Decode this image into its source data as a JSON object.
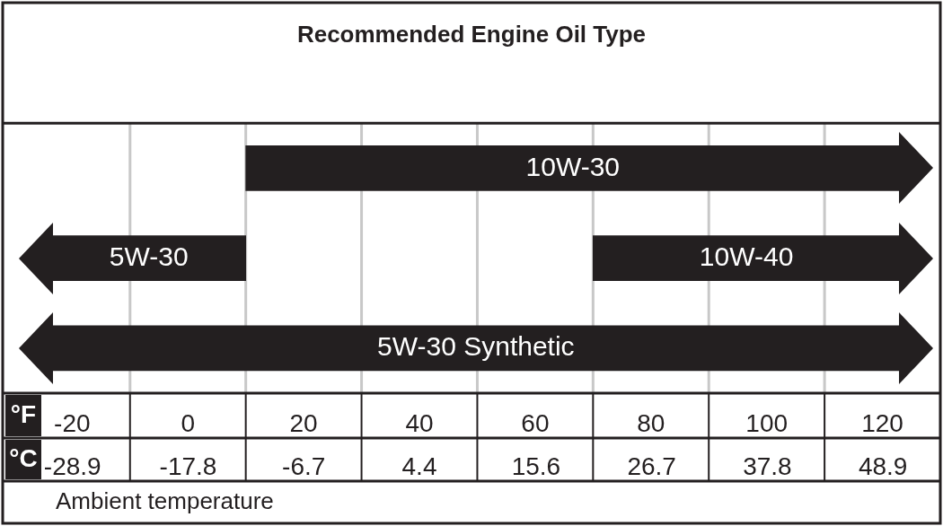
{
  "chart_data": {
    "type": "bar",
    "orientation": "horizontal",
    "title": "Recommended Engine Oil Type",
    "categories": [
      null,
      null,
      null
    ],
    "series": [
      {
        "name": "10W-30",
        "color": "#231f20",
        "values": [
          113,
          null,
          null
        ],
        "base": [
          10,
          null,
          null
        ]
      },
      {
        "name": "5W-30",
        "color": "#231f20",
        "values": [
          null,
          33.5,
          null
        ],
        "base": [
          null,
          -23.5,
          null
        ]
      },
      {
        "name": "10W-40",
        "color": "#231f20",
        "values": [
          null,
          53,
          null
        ],
        "base": [
          null,
          70,
          null
        ]
      },
      {
        "name": "5W-30 Synthetic",
        "color": "#231f20",
        "values": [
          null,
          null,
          146.5
        ],
        "base": [
          null,
          null,
          -23.5
        ]
      }
    ],
    "xlabel": "°F",
    "x2label": "°C",
    "xlim": [
      -32,
      130
    ],
    "xticks": [
      -20,
      0,
      20,
      40,
      60,
      80,
      100,
      120
    ],
    "x2lim": [
      -35.6,
      54.4
    ],
    "x2ticks": [
      -28.9,
      -17.8,
      -6.7,
      4.4,
      15.6,
      26.7,
      37.8,
      48.9
    ],
    "grid": "x",
    "legend": false,
    "annotations": [
      "Ambient temperature"
    ]
  }
}
